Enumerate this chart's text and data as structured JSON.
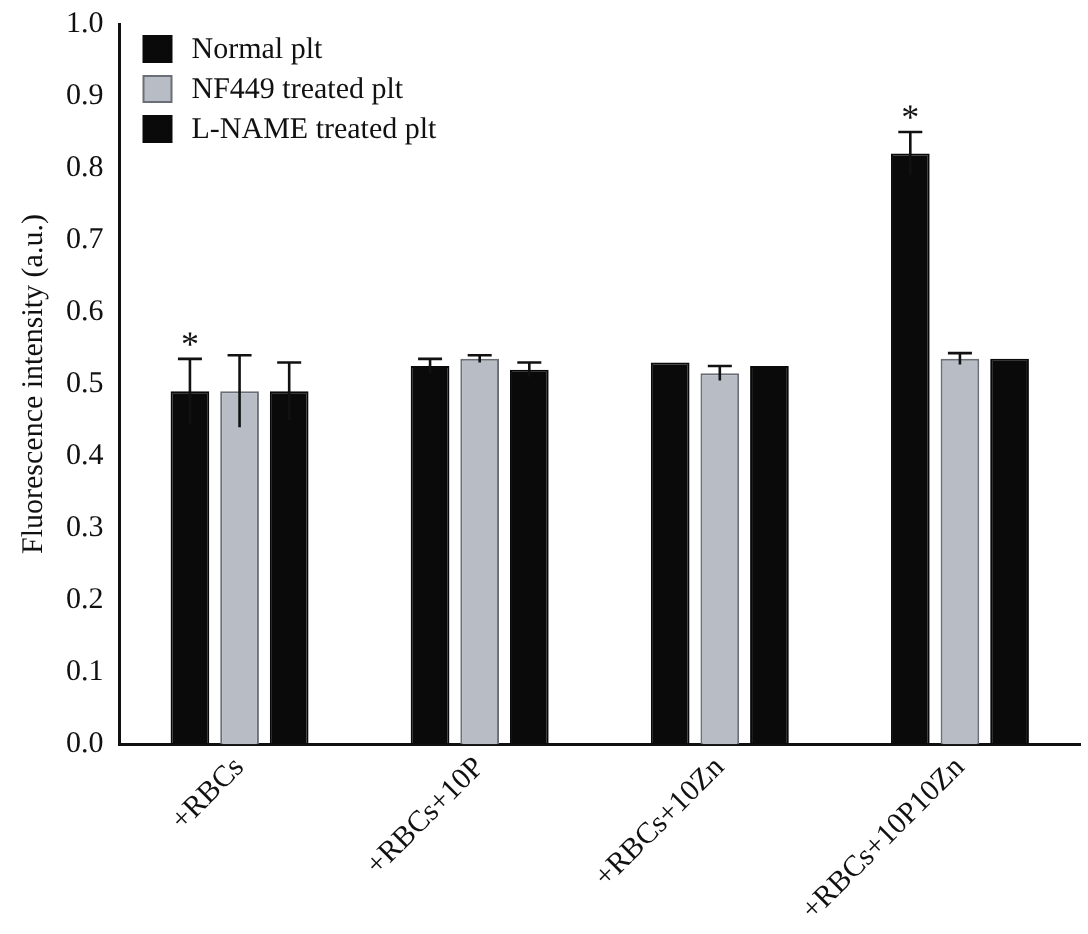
{
  "chart_data": {
    "type": "bar",
    "ylabel": "Fluorescence intensity (a.u.)",
    "categories": [
      "+RBCs",
      "+RBCs+10P",
      "+RBCs+10Zn",
      "+RBCs+10P10Zn"
    ],
    "series": [
      {
        "name": "Normal plt",
        "color": "#0a0a0a",
        "values": [
          0.49,
          0.525,
          0.53,
          0.82
        ],
        "errors": [
          0.045,
          0.01,
          null,
          0.03
        ],
        "value_labels": [
          "*",
          null,
          null,
          "*"
        ]
      },
      {
        "name": "NF449 treated plt",
        "color": "#b8bcc4",
        "values": [
          0.49,
          0.535,
          0.515,
          0.535
        ],
        "errors": [
          0.05,
          0.005,
          0.01,
          0.008
        ]
      },
      {
        "name": "L-NAME treated plt",
        "color": "#0a0a0a",
        "values": [
          0.49,
          0.52,
          0.525,
          0.535
        ],
        "errors": [
          0.04,
          0.01,
          null,
          null
        ]
      }
    ],
    "ylim": [
      0,
      1
    ],
    "yticks": [
      {
        "value": 0,
        "label": "0.0"
      },
      {
        "value": 0.1,
        "label": "0.1"
      },
      {
        "value": 0.2,
        "label": "0.2"
      },
      {
        "value": 0.3,
        "label": "0.3"
      },
      {
        "value": 0.4,
        "label": "0.4"
      },
      {
        "value": 0.5,
        "label": "0.5"
      },
      {
        "value": 0.6,
        "label": "0.6"
      },
      {
        "value": 0.7,
        "label": "0.7"
      },
      {
        "value": 0.8,
        "label": "0.8"
      },
      {
        "value": 0.9,
        "label": "0.9"
      },
      {
        "value": 1,
        "label": "1.0"
      }
    ],
    "legend": "top left",
    "grid": false
  }
}
